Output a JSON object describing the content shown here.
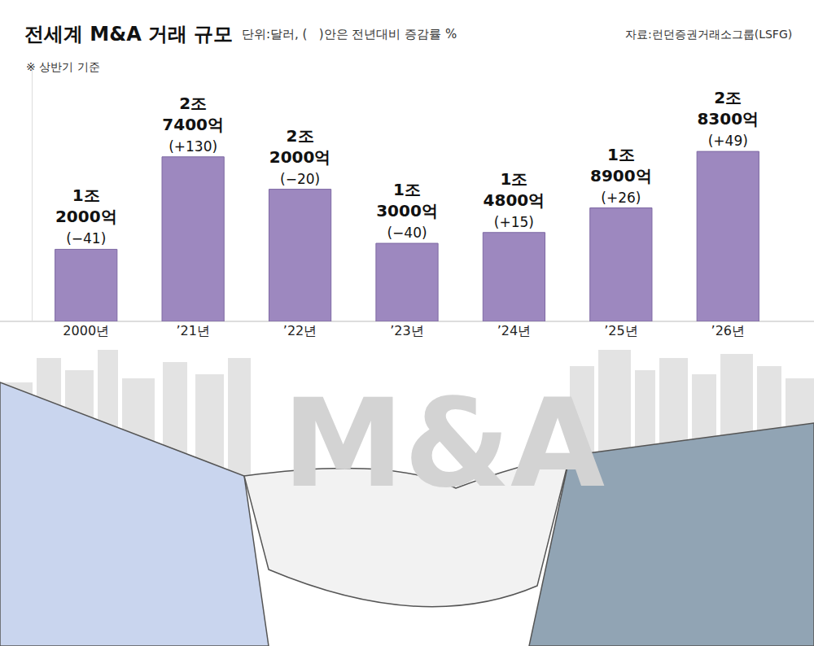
{
  "chart_data": {
    "type": "bar",
    "title": "전세계 M&A 거래 규모",
    "subtitle": "단위:달러, (   )안은 전년대비 증감률 %",
    "source": "자료:런던증권거래소그룹(LSFG)",
    "note": "※ 상반기 기준",
    "annotations": [
      "M&A"
    ],
    "categories": [
      "2000년",
      "’21년",
      "’22년",
      "’23년",
      "’24년",
      "’25년",
      "’26년"
    ],
    "values": [
      12000,
      27400,
      22000,
      13000,
      14800,
      18900,
      28300
    ],
    "value_labels": [
      "1조 2000억",
      "2조 7400억",
      "2조 2000억",
      "1조 3000억",
      "1조 4800억",
      "1조 8900억",
      "2조 8300억"
    ],
    "change": [
      -41,
      130,
      -20,
      -40,
      15,
      26,
      49
    ],
    "change_labels": [
      "(−41)",
      "(+130)",
      "(−20)",
      "(−40)",
      "(+15)",
      "(+26)",
      "(+49)"
    ],
    "color": "#9d88bf",
    "ylim": [
      0,
      42000
    ],
    "yticks": [],
    "grid": false,
    "data_labels": true,
    "tick_labels": "x"
  }
}
